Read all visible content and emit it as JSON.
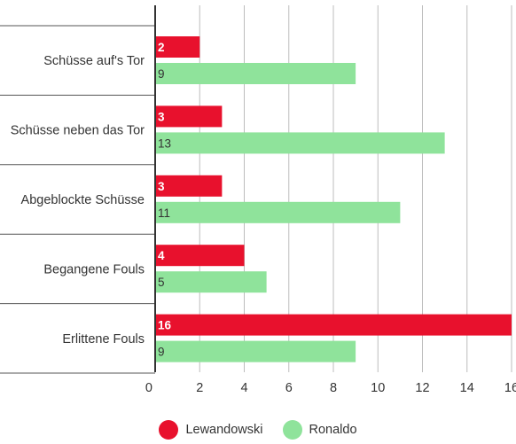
{
  "chart_data": {
    "type": "bar",
    "orientation": "horizontal",
    "categories": [
      "Schüsse auf's Tor",
      "Schüsse neben das Tor",
      "Abgeblockte Schüsse",
      "Begangene Fouls",
      "Erlittene Fouls"
    ],
    "series": [
      {
        "name": "Lewandowski",
        "values": [
          2,
          3,
          3,
          4,
          16
        ],
        "color": "#e8112d"
      },
      {
        "name": "Ronaldo",
        "values": [
          9,
          13,
          11,
          5,
          9
        ],
        "color": "#8fe39b"
      }
    ],
    "xlim": [
      0,
      16
    ],
    "xticks": [
      "0",
      "2",
      "4",
      "6",
      "8",
      "10",
      "12",
      "14",
      "16"
    ],
    "grid": true,
    "legend_position": "bottom"
  }
}
